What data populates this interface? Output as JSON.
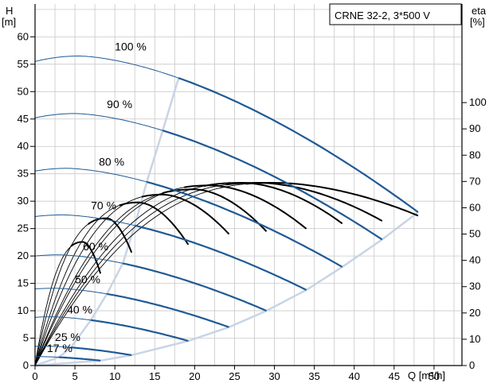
{
  "chart_data": {
    "type": "line",
    "title": "CRNE 32-2, 3*500 V",
    "xlabel": "Q [m³/h]",
    "ylabel_left_symbol": "H",
    "ylabel_left_unit": "[m]",
    "ylabel_right_symbol": "eta",
    "ylabel_right_unit": "[%]",
    "xlim": [
      0,
      53.5
    ],
    "ylim_left": [
      0,
      66
    ],
    "ylim_right": [
      0,
      137.5
    ],
    "x_ticks": [
      0,
      5,
      10,
      15,
      20,
      25,
      30,
      35,
      40,
      45,
      50
    ],
    "y_ticks_left": [
      0,
      5,
      10,
      15,
      20,
      25,
      30,
      35,
      40,
      45,
      50,
      55,
      60
    ],
    "y_ticks_right": [
      0,
      10,
      20,
      30,
      40,
      50,
      60,
      70,
      80,
      90,
      100
    ],
    "grid": true,
    "colors": {
      "head_curve": "#1f5a94",
      "curve_extension": "#c8d4e6",
      "efficiency_curve": "#000000",
      "grid": "#c8c8c8"
    },
    "speed_labels": [
      {
        "text": "100 %",
        "q": 10,
        "h": 57.5
      },
      {
        "text": "90 %",
        "q": 9,
        "h": 47
      },
      {
        "text": "80 %",
        "q": 8,
        "h": 36.5
      },
      {
        "text": "70 %",
        "q": 7,
        "h": 28.5
      },
      {
        "text": "60 %",
        "q": 6,
        "h": 21
      },
      {
        "text": "50 %",
        "q": 5,
        "h": 15
      },
      {
        "text": "40 %",
        "q": 4,
        "h": 9.5
      },
      {
        "text": "25 %",
        "q": 2.5,
        "h": 4.5
      },
      {
        "text": "17 %",
        "q": 1.5,
        "h": 2.5
      }
    ],
    "head_curves": [
      {
        "speed": 100,
        "h0": 55.5,
        "h_peak": 56.5,
        "q_peak": 5.5,
        "q_ext": 18,
        "q_end": 48,
        "h_end": 28
      },
      {
        "speed": 90,
        "h0": 45.2,
        "h_peak": 46,
        "q_peak": 5,
        "q_ext": 16,
        "q_end": 43.5,
        "h_end": 23
      },
      {
        "speed": 80,
        "h0": 35.5,
        "h_peak": 36,
        "q_peak": 4,
        "q_ext": 14,
        "q_end": 38.5,
        "h_end": 18
      },
      {
        "speed": 70,
        "h0": 27.2,
        "h_peak": 27.5,
        "q_peak": 3.5,
        "q_ext": 12.5,
        "q_end": 34,
        "h_end": 13.8
      },
      {
        "speed": 60,
        "h0": 20,
        "h_peak": 20.2,
        "q_peak": 3,
        "q_ext": 11,
        "q_end": 29,
        "h_end": 10
      },
      {
        "speed": 50,
        "h0": 14,
        "h_peak": 14.1,
        "q_peak": 2.5,
        "q_ext": 9,
        "q_end": 24.3,
        "h_end": 7
      },
      {
        "speed": 40,
        "h0": 8.8,
        "h_peak": 8.9,
        "q_peak": 2,
        "q_ext": 7,
        "q_end": 19.2,
        "h_end": 4.5
      },
      {
        "speed": 25,
        "h0": 3.5,
        "h_peak": 3.55,
        "q_peak": 1.2,
        "q_ext": 4.5,
        "q_end": 12.1,
        "h_end": 1.9
      },
      {
        "speed": 17,
        "h0": 1.6,
        "h_peak": 1.62,
        "q_peak": 0.8,
        "q_ext": 3,
        "q_end": 8.2,
        "h_end": 0.9
      }
    ],
    "efficiency_curves": [
      {
        "speed": 100,
        "q_end": 48,
        "eta_max": 69.5,
        "q_peak": 30,
        "eta_end": 57
      },
      {
        "speed": 90,
        "q_end": 43.5,
        "eta_max": 69.5,
        "q_peak": 28,
        "eta_end": 55
      },
      {
        "speed": 80,
        "q_end": 38.5,
        "eta_max": 69.5,
        "q_peak": 26,
        "eta_end": 54
      },
      {
        "speed": 70,
        "q_end": 34,
        "eta_max": 68.5,
        "q_peak": 22,
        "eta_end": 52
      },
      {
        "speed": 60,
        "q_end": 29,
        "eta_max": 67,
        "q_peak": 20,
        "eta_end": 51
      },
      {
        "speed": 50,
        "q_end": 24.3,
        "eta_max": 65,
        "q_peak": 16,
        "eta_end": 50
      },
      {
        "speed": 40,
        "q_end": 19.2,
        "eta_max": 62,
        "q_peak": 13,
        "eta_end": 46
      },
      {
        "speed": 25,
        "q_end": 12.1,
        "eta_max": 56,
        "q_peak": 9,
        "eta_end": 43
      },
      {
        "speed": 17,
        "q_end": 8.2,
        "eta_max": 47,
        "q_peak": 6,
        "eta_end": 35
      }
    ],
    "efficiency_bep": {
      "q": 30,
      "eta": 69
    }
  }
}
